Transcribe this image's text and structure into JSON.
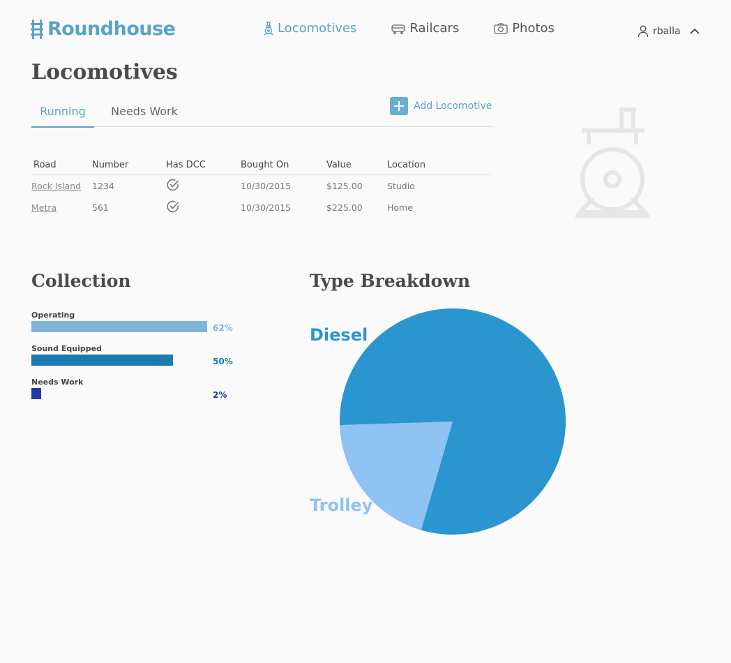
{
  "app": {
    "name": "Roundhouse"
  },
  "nav": {
    "items": [
      {
        "label": "Locomotives",
        "icon": "locomotive-icon",
        "active": true
      },
      {
        "label": "Railcars",
        "icon": "railcar-icon",
        "active": false
      },
      {
        "label": "Photos",
        "icon": "camera-icon",
        "active": false
      }
    ]
  },
  "user": {
    "name": "rballa"
  },
  "page": {
    "title": "Locomotives"
  },
  "tabs": [
    {
      "label": "Running",
      "active": true
    },
    {
      "label": "Needs Work",
      "active": false
    }
  ],
  "toolbar": {
    "add_label": "Add Locomotive"
  },
  "table": {
    "headers": [
      "Road",
      "Number",
      "Has DCC",
      "Bought On",
      "Value",
      "Location"
    ],
    "rows": [
      {
        "road": "Rock Island",
        "number": "1234",
        "has_dcc": true,
        "bought_on": "10/30/2015",
        "value": "$125.00",
        "location": "Studio"
      },
      {
        "road": "Metra",
        "number": "561",
        "has_dcc": true,
        "bought_on": "10/30/2015",
        "value": "$225.00",
        "location": "Home"
      }
    ]
  },
  "collection": {
    "title": "Collection",
    "stats": [
      {
        "label": "Operating",
        "percent": 62,
        "percent_label": "62%",
        "color": "#7fb6d7"
      },
      {
        "label": "Sound Equipped",
        "percent": 50,
        "percent_label": "50%",
        "color": "#1c7bb0"
      },
      {
        "label": "Needs Work",
        "percent": 2,
        "percent_label": "2%",
        "color": "#1e3aa0"
      }
    ]
  },
  "type_breakdown": {
    "title": "Type Breakdown"
  },
  "chart_data": {
    "type": "pie",
    "categories": [
      "Diesel",
      "Trolley"
    ],
    "values": [
      80,
      20
    ],
    "colors": [
      "#2b95d0",
      "#8ec3f3"
    ],
    "title": "Type Breakdown"
  },
  "colors": {
    "accent": "#5ba2c6",
    "text": "#4a4a4a",
    "illustration": "#e6e6e6"
  }
}
